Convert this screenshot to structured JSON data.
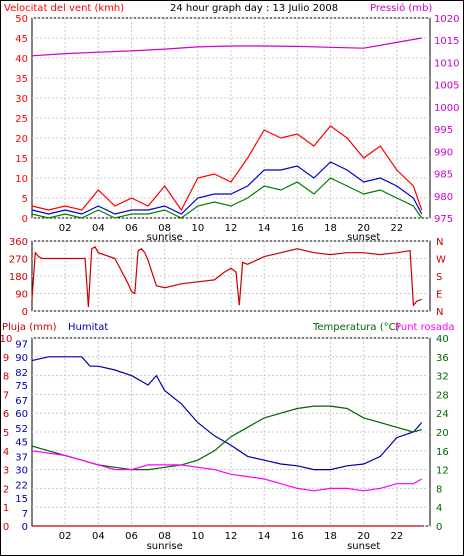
{
  "header": {
    "title": "24 hour graph day : 13 Julio 2008",
    "left_label": "Velocitat del vent (kmh)",
    "right_label": "Pressió (mb)"
  },
  "colors": {
    "frame": "#000000",
    "grid": "#c8c8c8",
    "wind_gust": "#ff0000",
    "wind_avg": "#0000c8",
    "wind_min": "#008000",
    "pressure": "#cc00cc",
    "direction": "#cc0000",
    "humidity": "#0000aa",
    "temperature": "#006400",
    "dewpoint": "#ff00ff",
    "rain": "#cc0000"
  },
  "chart_data": [
    {
      "type": "line",
      "title": "24 hour graph day : 13 Julio 2008",
      "ylabel_left": "Velocitat del vent (kmh)",
      "ylabel_right": "Pressió (mb)",
      "x_ticks": [
        "02",
        "04",
        "06",
        "08",
        "10",
        "12",
        "14",
        "16",
        "18",
        "20",
        "22"
      ],
      "x_annotations": [
        {
          "label": "sunrise",
          "at": "08"
        },
        {
          "label": "sunset",
          "at": "20"
        }
      ],
      "ylim_left": [
        0,
        50
      ],
      "yticks_left": [
        0,
        5,
        10,
        15,
        20,
        25,
        30,
        35,
        40,
        45,
        50
      ],
      "ylim_right": [
        975,
        1020
      ],
      "yticks_right": [
        975,
        980,
        985,
        990,
        995,
        1000,
        1005,
        1010,
        1015,
        1020
      ],
      "grid": true,
      "series": [
        {
          "axis": "right",
          "x": [
            0,
            2,
            4,
            6,
            8,
            10,
            12,
            14,
            16,
            18,
            20,
            22,
            23.5
          ],
          "values": [
            1011.5,
            1012,
            1012.3,
            1012.6,
            1013,
            1013.5,
            1013.7,
            1013.7,
            1013.6,
            1013.4,
            1013.2,
            1014.5,
            1015.5
          ]
        },
        {
          "axis": "left",
          "x": [
            0,
            1,
            2,
            3,
            4,
            5,
            6,
            7,
            8,
            9,
            10,
            11,
            12,
            13,
            14,
            15,
            16,
            17,
            18,
            19,
            20,
            21,
            22,
            23,
            23.5
          ],
          "values": [
            3,
            2,
            3,
            2,
            7,
            3,
            5,
            3,
            8,
            2,
            10,
            11,
            9,
            15,
            22,
            20,
            21,
            18,
            23,
            20,
            15,
            18,
            12,
            8,
            2
          ]
        },
        {
          "axis": "left",
          "x": [
            0,
            1,
            2,
            3,
            4,
            5,
            6,
            7,
            8,
            9,
            10,
            11,
            12,
            13,
            14,
            15,
            16,
            17,
            18,
            19,
            20,
            21,
            22,
            23,
            23.5
          ],
          "values": [
            2,
            1,
            2,
            1,
            3,
            1,
            2,
            2,
            3,
            1,
            5,
            6,
            6,
            8,
            12,
            12,
            13,
            10,
            14,
            12,
            9,
            10,
            8,
            5,
            1
          ]
        },
        {
          "axis": "left",
          "x": [
            0,
            1,
            2,
            3,
            4,
            5,
            6,
            7,
            8,
            9,
            10,
            11,
            12,
            13,
            14,
            15,
            16,
            17,
            18,
            19,
            20,
            21,
            22,
            23,
            23.5
          ],
          "values": [
            1,
            0,
            1,
            0,
            2,
            0,
            1,
            1,
            2,
            0,
            3,
            4,
            3,
            5,
            8,
            7,
            9,
            6,
            10,
            8,
            6,
            7,
            5,
            3,
            0
          ]
        }
      ]
    },
    {
      "type": "line",
      "ylim": [
        0,
        360
      ],
      "yticks": [
        0,
        90,
        180,
        270,
        360
      ],
      "yticks_right": [
        "N",
        "E",
        "S",
        "W",
        "N"
      ],
      "grid": true,
      "x_ticks": [],
      "series": [
        {
          "x": [
            0,
            0.2,
            0.4,
            0.6,
            1,
            2,
            3.2,
            3.4,
            3.6,
            3.8,
            4,
            5,
            5.8,
            6,
            6.2,
            6.4,
            6.6,
            6.8,
            7,
            7.5,
            8,
            9,
            10,
            11,
            11.6,
            12,
            12.3,
            12.5,
            12.7,
            13,
            14,
            15,
            16,
            17,
            18,
            19,
            20,
            21,
            22,
            22.8,
            23,
            23.2,
            23.5
          ],
          "values": [
            60,
            300,
            280,
            270,
            270,
            270,
            270,
            20,
            320,
            330,
            300,
            270,
            140,
            100,
            90,
            310,
            320,
            300,
            260,
            130,
            120,
            140,
            150,
            160,
            200,
            220,
            200,
            30,
            250,
            240,
            280,
            300,
            320,
            300,
            290,
            300,
            300,
            290,
            300,
            310,
            30,
            50,
            60
          ]
        }
      ]
    },
    {
      "type": "line",
      "ylabel_left_1": "Pluja (mm)",
      "ylabel_left_2": "Humitat",
      "ylabel_right": "Temperatura (°C)Punt rosada",
      "x_ticks": [
        "02",
        "04",
        "06",
        "08",
        "10",
        "12",
        "14",
        "16",
        "18",
        "20",
        "22"
      ],
      "x_annotations": [
        {
          "label": "sunrise",
          "at": "08"
        },
        {
          "label": "sunset",
          "at": "20"
        }
      ],
      "ylim_left": [
        0,
        100
      ],
      "yticks_left_rain": [
        0,
        1,
        2,
        3,
        4,
        5,
        6,
        7,
        8,
        9,
        10
      ],
      "yticks_left_humidity": [
        0,
        7,
        15,
        22,
        30,
        37,
        45,
        52,
        60,
        67,
        75,
        82,
        90,
        97
      ],
      "ylim_right": [
        0,
        40
      ],
      "yticks_right": [
        0,
        4,
        8,
        12,
        16,
        20,
        24,
        28,
        32,
        36,
        40
      ],
      "grid": true,
      "series": [
        {
          "axis": "left",
          "x": [
            0,
            1,
            2,
            3,
            3.5,
            4,
            5,
            6,
            7,
            7.5,
            8,
            9,
            10,
            11,
            12,
            13,
            14,
            15,
            16,
            17,
            18,
            19,
            20,
            21,
            22,
            23,
            23.5
          ],
          "values": [
            88,
            90,
            90,
            90,
            85,
            85,
            83,
            80,
            75,
            80,
            72,
            65,
            55,
            48,
            43,
            37,
            35,
            33,
            32,
            30,
            30,
            32,
            33,
            37,
            47,
            50,
            55
          ]
        },
        {
          "axis": "right",
          "x": [
            0,
            1,
            2,
            3,
            4,
            5,
            6,
            7,
            8,
            9,
            10,
            11,
            12,
            13,
            14,
            15,
            16,
            17,
            18,
            19,
            20,
            21,
            22,
            23,
            23.5
          ],
          "values": [
            17,
            16,
            15,
            14,
            13,
            12.5,
            12,
            12,
            12.5,
            13,
            14,
            16,
            19,
            21,
            23,
            24,
            25,
            25.5,
            25.5,
            25,
            23,
            22,
            21,
            20,
            20.5
          ]
        },
        {
          "axis": "right",
          "x": [
            0,
            1,
            2,
            3,
            4,
            5,
            6,
            7,
            8,
            9,
            10,
            11,
            12,
            13,
            14,
            15,
            16,
            17,
            18,
            19,
            20,
            21,
            22,
            23,
            23.5
          ],
          "values": [
            16,
            15.5,
            15,
            14,
            13,
            12,
            12,
            13,
            13,
            13,
            12.5,
            12,
            11,
            10.5,
            10,
            9,
            8,
            7.5,
            8,
            8,
            7.5,
            8,
            9,
            9,
            10
          ]
        },
        {
          "axis": "left",
          "x": [
            0,
            23.5
          ],
          "values": [
            0,
            0
          ]
        }
      ]
    }
  ],
  "panel3": {
    "rain_label": "Pluja (mm)",
    "humidity_label": "Humitat",
    "temp_label": "Temperatura (°C)",
    "dew_label": "Punt rosada"
  }
}
